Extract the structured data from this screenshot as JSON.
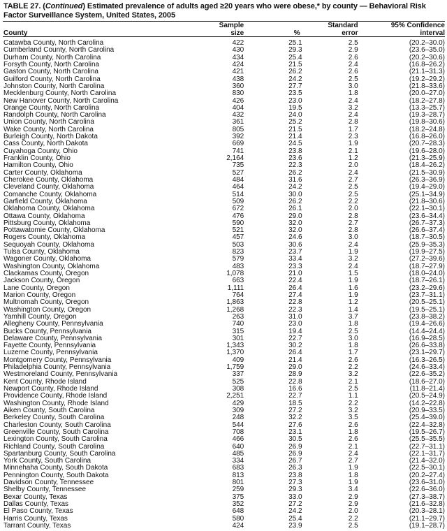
{
  "title": {
    "prefix": "TABLE 27. (",
    "continued": "Continued",
    "rest": ") Estimated prevalence of adults aged ≥20 years who were obese,* by county — Behavioral Risk Factor Surveillance System, United States, 2005"
  },
  "columns": {
    "county": "County",
    "sample_line1": "Sample",
    "sample_line2": "size",
    "percent": "%",
    "se_line1": "Standard",
    "se_line2": "error",
    "ci_line1": "95% Confidence",
    "ci_line2": "interval"
  },
  "rows": [
    [
      "Catawba County, North Carolina",
      "422",
      "25.1",
      "2.5",
      "(20.2–30.0)"
    ],
    [
      "Cumberland County, North Carolina",
      "430",
      "29.3",
      "2.9",
      "(23.6–35.0)"
    ],
    [
      "Durham County, North Carolina",
      "434",
      "25.4",
      "2.6",
      "(20.2–30.6)"
    ],
    [
      "Forsyth County, North Carolina",
      "424",
      "21.5",
      "2.4",
      "(16.8–26.2)"
    ],
    [
      "Gaston County, North Carolina",
      "421",
      "26.2",
      "2.6",
      "(21.1–31.3)"
    ],
    [
      "Guilford County, North Carolina",
      "438",
      "24.2",
      "2.5",
      "(19.2–29.2)"
    ],
    [
      "Johnston County, North Carolina",
      "360",
      "27.7",
      "3.0",
      "(21.8–33.6)"
    ],
    [
      "Mecklenburg County, North Carolina",
      "830",
      "23.5",
      "1.8",
      "(20.0–27.0)"
    ],
    [
      "New Hanover County, North Carolina",
      "426",
      "23.0",
      "2.4",
      "(18.2–27.8)"
    ],
    [
      "Orange County, North Carolina",
      "404",
      "19.5",
      "3.2",
      "(13.3–25.7)"
    ],
    [
      "Randolph County, North Carolina",
      "432",
      "24.0",
      "2.4",
      "(19.3–28.7)"
    ],
    [
      "Union County, North Carolina",
      "361",
      "25.2",
      "2.8",
      "(19.8–30.6)"
    ],
    [
      "Wake County, North Carolina",
      "805",
      "21.5",
      "1.7",
      "(18.2–24.8)"
    ],
    [
      "Burleigh County, North Dakota",
      "392",
      "21.4",
      "2.3",
      "(16.8–26.0)"
    ],
    [
      "Cass County, North Dakota",
      "669",
      "24.5",
      "1.9",
      "(20.7–28.3)"
    ],
    [
      "Cuyahoga County, Ohio",
      "741",
      "23.8",
      "2.1",
      "(19.6–28.0)"
    ],
    [
      "Franklin County, Ohio",
      "2,164",
      "23.6",
      "1.2",
      "(21.3–25.9)"
    ],
    [
      "Hamilton County, Ohio",
      "735",
      "22.3",
      "2.0",
      "(18.4–26.2)"
    ],
    [
      "Carter County, Oklahoma",
      "527",
      "26.2",
      "2.4",
      "(21.5–30.9)"
    ],
    [
      "Cherokee County, Oklahoma",
      "484",
      "31.6",
      "2.7",
      "(26.3–36.9)"
    ],
    [
      "Cleveland County, Oklahoma",
      "464",
      "24.2",
      "2.5",
      "(19.4–29.0)"
    ],
    [
      "Comanche County, Oklahoma",
      "514",
      "30.0",
      "2.5",
      "(25.1–34.9)"
    ],
    [
      "Garfield County, Oklahoma",
      "509",
      "26.2",
      "2.2",
      "(21.8–30.6)"
    ],
    [
      "Oklahoma County, Oklahoma",
      "672",
      "26.1",
      "2.0",
      "(22.1–30.1)"
    ],
    [
      "Ottawa County, Oklahoma",
      "476",
      "29.0",
      "2.8",
      "(23.6–34.4)"
    ],
    [
      "Pittsburg County, Oklahoma",
      "590",
      "32.0",
      "2.7",
      "(26.7–37.3)"
    ],
    [
      "Pottawatomie County, Oklahoma",
      "521",
      "32.0",
      "2.8",
      "(26.6–37.4)"
    ],
    [
      "Rogers County, Oklahoma",
      "457",
      "24.6",
      "3.0",
      "(18.7–30.5)"
    ],
    [
      "Sequoyah County, Oklahoma",
      "503",
      "30.6",
      "2.4",
      "(25.9–35.3)"
    ],
    [
      "Tulsa County, Oklahoma",
      "823",
      "23.7",
      "1.9",
      "(19.9–27.5)"
    ],
    [
      "Wagoner County, Oklahoma",
      "579",
      "33.4",
      "3.2",
      "(27.2–39.6)"
    ],
    [
      "Washington County, Oklahoma",
      "483",
      "23.3",
      "2.4",
      "(18.7–27.9)"
    ],
    [
      "Clackamas County, Oregon",
      "1,078",
      "21.0",
      "1.5",
      "(18.0–24.0)"
    ],
    [
      "Jackson County, Oregon",
      "663",
      "22.4",
      "1.9",
      "(18.7–26.1)"
    ],
    [
      "Lane County, Oregon",
      "1,111",
      "26.4",
      "1.6",
      "(23.2–29.6)"
    ],
    [
      "Marion County, Oregon",
      "764",
      "27.4",
      "1.9",
      "(23.7–31.1)"
    ],
    [
      "Multnomah County, Oregon",
      "1,863",
      "22.8",
      "1.2",
      "(20.5–25.1)"
    ],
    [
      "Washington County, Oregon",
      "1,268",
      "22.3",
      "1.4",
      "(19.5–25.1)"
    ],
    [
      "Yamhill County, Oregon",
      "263",
      "31.0",
      "3.7",
      "(23.8–38.2)"
    ],
    [
      "Allegheny County, Pennsylvania",
      "740",
      "23.0",
      "1.8",
      "(19.4–26.6)"
    ],
    [
      "Bucks County, Pennsylvania",
      "315",
      "19.4",
      "2.5",
      "(14.4–24.4)"
    ],
    [
      "Delaware County, Pennsylvania",
      "301",
      "22.7",
      "3.0",
      "(16.9–28.5)"
    ],
    [
      "Fayette County, Pennsylvania",
      "1,343",
      "30.2",
      "1.8",
      "(26.6–33.8)"
    ],
    [
      "Luzerne County, Pennsylvania",
      "1,370",
      "26.4",
      "1.7",
      "(23.1–29.7)"
    ],
    [
      "Montgomery County, Pennsylvania",
      "409",
      "21.4",
      "2.6",
      "(16.3–26.5)"
    ],
    [
      "Philadelphia County, Pennsylvania",
      "1,759",
      "29.0",
      "2.2",
      "(24.6–33.4)"
    ],
    [
      "Westmoreland County, Pennsylvania",
      "337",
      "28.9",
      "3.2",
      "(22.6–35.2)"
    ],
    [
      "Kent County, Rhode Island",
      "525",
      "22.8",
      "2.1",
      "(18.6–27.0)"
    ],
    [
      "Newport County, Rhode Island",
      "308",
      "16.6",
      "2.5",
      "(11.8–21.4)"
    ],
    [
      "Providence County, Rhode Island",
      "2,251",
      "22.7",
      "1.1",
      "(20.5–24.9)"
    ],
    [
      "Washington County, Rhode Island",
      "429",
      "18.5",
      "2.2",
      "(14.2–22.8)"
    ],
    [
      "Aiken County, South Carolina",
      "309",
      "27.2",
      "3.2",
      "(20.9–33.5)"
    ],
    [
      "Berkeley County, South Carolina",
      "248",
      "32.2",
      "3.5",
      "(25.4–39.0)"
    ],
    [
      "Charleston County, South Carolina",
      "544",
      "27.6",
      "2.6",
      "(22.4–32.8)"
    ],
    [
      "Greenville County, South Carolina",
      "708",
      "23.1",
      "1.8",
      "(19.5–26.7)"
    ],
    [
      "Lexington County, South Carolina",
      "466",
      "30.5",
      "2.6",
      "(25.5–35.5)"
    ],
    [
      "Richland County, South Carolina",
      "640",
      "26.9",
      "2.1",
      "(22.7–31.1)"
    ],
    [
      "Spartanburg County, South Carolina",
      "485",
      "26.9",
      "2.4",
      "(22.1–31.7)"
    ],
    [
      "York County, South Carolina",
      "334",
      "26.7",
      "2.7",
      "(21.4–32.0)"
    ],
    [
      "Minnehaha County, South Dakota",
      "683",
      "26.3",
      "1.9",
      "(22.5–30.1)"
    ],
    [
      "Pennington County, South Dakota",
      "813",
      "23.8",
      "1.8",
      "(20.2–27.4)"
    ],
    [
      "Davidson County, Tennessee",
      "801",
      "27.3",
      "1.9",
      "(23.6–31.0)"
    ],
    [
      "Shelby County, Tennessee",
      "259",
      "29.3",
      "3.4",
      "(22.6–36.0)"
    ],
    [
      "Bexar County, Texas",
      "375",
      "33.0",
      "2.9",
      "(27.3–38.7)"
    ],
    [
      "Dallas County, Texas",
      "352",
      "27.2",
      "2.9",
      "(21.6–32.8)"
    ],
    [
      "El Paso County, Texas",
      "648",
      "24.2",
      "2.0",
      "(20.3–28.1)"
    ],
    [
      "Harris County, Texas",
      "580",
      "25.4",
      "2.2",
      "(21.1–29.7)"
    ],
    [
      "Tarrant County, Texas",
      "424",
      "23.9",
      "2.5",
      "(19.1–28.7)"
    ]
  ]
}
